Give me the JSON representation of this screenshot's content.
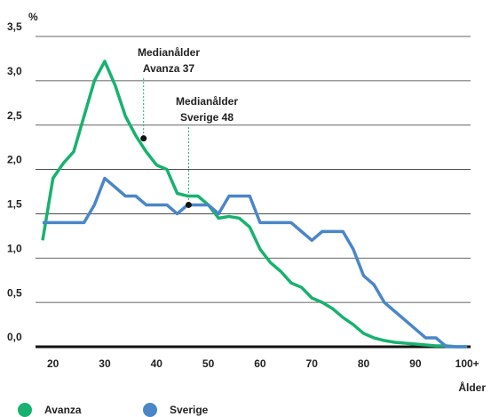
{
  "chart_data": {
    "type": "line",
    "y_label": "%",
    "x_label": "Ålder",
    "x": [
      18,
      20,
      22,
      24,
      26,
      28,
      30,
      32,
      34,
      36,
      38,
      40,
      42,
      44,
      46,
      48,
      50,
      52,
      54,
      56,
      58,
      60,
      62,
      64,
      66,
      68,
      70,
      72,
      74,
      76,
      78,
      80,
      82,
      84,
      86,
      88,
      90,
      92,
      94,
      96,
      98,
      100
    ],
    "series": [
      {
        "name": "Avanza",
        "color": "#17b26f",
        "values": [
          1.2,
          1.9,
          2.07,
          2.2,
          2.6,
          3.0,
          3.22,
          2.95,
          2.6,
          2.38,
          2.2,
          2.05,
          2.0,
          1.73,
          1.7,
          1.7,
          1.6,
          1.45,
          1.47,
          1.45,
          1.35,
          1.1,
          0.95,
          0.85,
          0.72,
          0.67,
          0.55,
          0.5,
          0.43,
          0.33,
          0.25,
          0.15,
          0.1,
          0.07,
          0.05,
          0.04,
          0.03,
          0.02,
          0.01,
          0.01,
          0,
          0
        ]
      },
      {
        "name": "Sverige",
        "color": "#4a86c8",
        "values": [
          1.4,
          1.4,
          1.4,
          1.4,
          1.4,
          1.6,
          1.9,
          1.8,
          1.7,
          1.7,
          1.6,
          1.6,
          1.6,
          1.5,
          1.6,
          1.6,
          1.6,
          1.5,
          1.7,
          1.7,
          1.7,
          1.4,
          1.4,
          1.4,
          1.4,
          1.3,
          1.2,
          1.3,
          1.3,
          1.3,
          1.1,
          0.8,
          0.7,
          0.5,
          0.4,
          0.3,
          0.2,
          0.1,
          0.1,
          0,
          0,
          0
        ]
      }
    ],
    "annotations": [
      {
        "lines": [
          "Medianålder",
          "Avanza 37"
        ],
        "x": 37.5,
        "y": 2.35
      },
      {
        "lines": [
          "Medianålder",
          "Sverige 48"
        ],
        "x": 46.2,
        "y": 1.6
      }
    ],
    "xlim": [
      18,
      101
    ],
    "xticks": [
      20,
      30,
      40,
      50,
      60,
      70,
      80,
      90,
      {
        "value": 100,
        "label": "100+"
      }
    ],
    "ylim": [
      0,
      3.5
    ],
    "yticks": [
      {
        "value": 0,
        "label": "0,0"
      },
      {
        "value": 0.5,
        "label": "0,5"
      },
      {
        "value": 1,
        "label": "1,0"
      },
      {
        "value": 1.5,
        "label": "1,5"
      },
      {
        "value": 2,
        "label": "2,0"
      },
      {
        "value": 2.5,
        "label": "2,5"
      },
      {
        "value": 3,
        "label": "3,0"
      },
      {
        "value": 3.5,
        "label": "3,5"
      }
    ],
    "grid": true
  }
}
